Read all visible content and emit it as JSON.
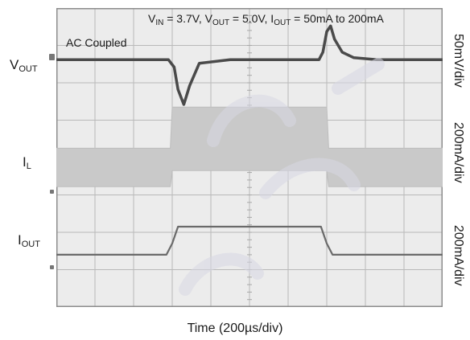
{
  "conditions": {
    "vin_sym": "V",
    "vin_sub": "IN",
    "vin_val": " = 3.7V, ",
    "vout_sym": "V",
    "vout_sub": "OUT",
    "vout_val": " = 5.0V, ",
    "iout_sym": "I",
    "iout_sub": "OUT",
    "iout_val": " = 50mA to 200mA"
  },
  "annotation": "AC Coupled",
  "channels": {
    "vout": {
      "sym": "V",
      "sub": "OUT",
      "scale": "50mV/div"
    },
    "il": {
      "sym": "I",
      "sub": "L",
      "scale": "200mA/div"
    },
    "iout": {
      "sym": "I",
      "sub": "OUT",
      "scale": "200mA/div"
    }
  },
  "xlabel": "Time (200µs/div)",
  "chart_data": {
    "type": "line",
    "title": "",
    "xlabel": "Time (200µs/div)",
    "x_divisions": 10,
    "y_divisions": 8,
    "grid": true,
    "series": [
      {
        "name": "VOUT",
        "scale": "50mV/div",
        "x_div": [
          0,
          2.9,
          3.05,
          3.15,
          3.3,
          3.45,
          3.7,
          4.5,
          6.8,
          6.9,
          7.0,
          7.1,
          7.2,
          7.4,
          7.7,
          8.3,
          10
        ],
        "y_div": [
          0,
          0,
          -0.2,
          -0.8,
          -1.2,
          -0.7,
          -0.1,
          0,
          0,
          0.2,
          0.75,
          0.9,
          0.55,
          0.2,
          0.05,
          0,
          0
        ]
      },
      {
        "name": "IL",
        "scale": "200mA/div",
        "x_div": [
          0,
          2.95,
          3.0,
          7.0,
          7.05,
          10
        ],
        "y_div": [
          0.32,
          0.32,
          0.75,
          0.75,
          0.32,
          0.32
        ],
        "ripple_div": [
          1.35,
          1.35,
          2.45,
          2.45,
          1.35,
          1.35
        ]
      },
      {
        "name": "IOUT",
        "scale": "200mA/div",
        "x_div": [
          0,
          2.85,
          3.0,
          3.15,
          6.85,
          7.0,
          7.15,
          10
        ],
        "y_div": [
          0.25,
          0.25,
          0.55,
          1.0,
          1.0,
          0.55,
          0.25,
          0.25
        ]
      }
    ]
  }
}
